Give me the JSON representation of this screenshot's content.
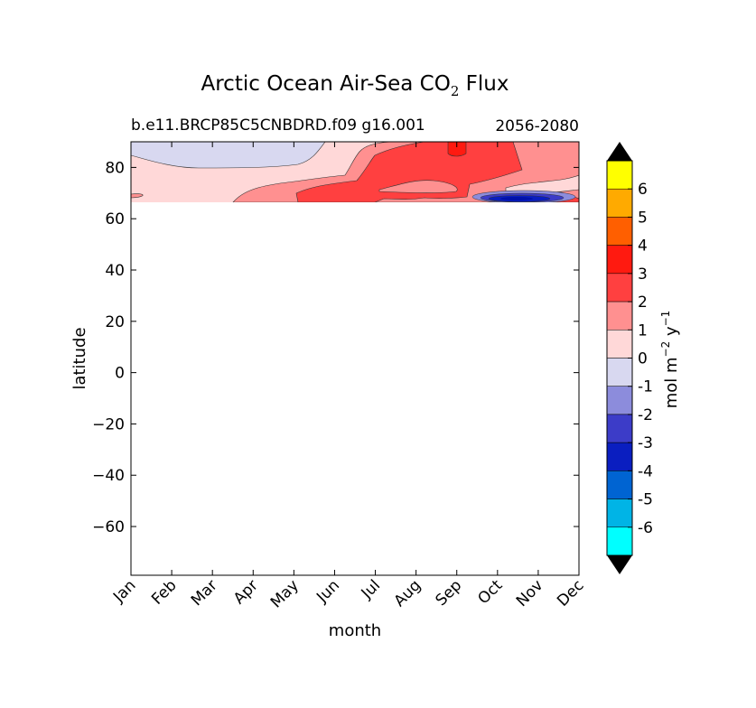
{
  "chart_data": {
    "type": "heatmap",
    "title": {
      "main": "Arctic Ocean Air-Sea CO",
      "subscript": "2",
      "suffix": " Flux"
    },
    "subtitle_left": "b.e11.BRCP85C5CNBDRD.f09 g16.001",
    "subtitle_right": "2056-2080",
    "xlabel": "month",
    "ylabel": "latitude",
    "x_tick_labels": [
      "Jan",
      "Feb",
      "Mar",
      "Apr",
      "May",
      "Jun",
      "Jul",
      "Aug",
      "Sep",
      "Oct",
      "Nov",
      "Dec"
    ],
    "ylim": [
      -79,
      90
    ],
    "y_ticks": [
      80,
      60,
      40,
      20,
      0,
      -20,
      -40,
      -60
    ],
    "y_tick_labels": [
      "80",
      "60",
      "40",
      "20",
      "0",
      "−20",
      "−40",
      "−60"
    ],
    "data_lat_min": 66.5,
    "colorbar": {
      "label": {
        "prefix": "mol m",
        "exp1": "−2",
        "mid": " y",
        "exp2": "−1"
      },
      "tick_labels": [
        "6",
        "5",
        "4",
        "3",
        "2",
        "1",
        "0",
        "-1",
        "-2",
        "-3",
        "-4",
        "-5",
        "-6"
      ],
      "levels": [
        7,
        6,
        5,
        4,
        3,
        2,
        1,
        0,
        -1,
        -2,
        -3,
        -4,
        -5,
        -6,
        -7
      ],
      "colors": [
        "#ffff00",
        "#ffaa00",
        "#ff5f00",
        "#ff1a10",
        "#ff4040",
        "#ff9090",
        "#ffd8d8",
        "#d8d8f0",
        "#8c8cdc",
        "#3c3cc8",
        "#0a1ec0",
        "#0064d2",
        "#00b4e6",
        "#00ffff"
      ],
      "extend_color": "#000000"
    },
    "regions": [
      {
        "level": "0 to 1",
        "desc": "background positive flux",
        "color": "#ffd8d8"
      },
      {
        "level": "-1 to 0",
        "desc": "Jan-Jun, 84-90N",
        "color": "#d8d8f0"
      },
      {
        "level": "1 to 2",
        "desc": "Mar-Dec, 67-87N",
        "color": "#ff9090"
      },
      {
        "level": "2 to 3",
        "desc": "Jun-Sep, 67-90N",
        "color": "#ff4040"
      },
      {
        "level": "3 to 4",
        "desc": "Aug-Sep, ~88N",
        "color": "#ff1a10"
      },
      {
        "level": "-4 to -1",
        "desc": "Oct-Nov, ~68N",
        "color": "#0a1ec0"
      }
    ]
  }
}
